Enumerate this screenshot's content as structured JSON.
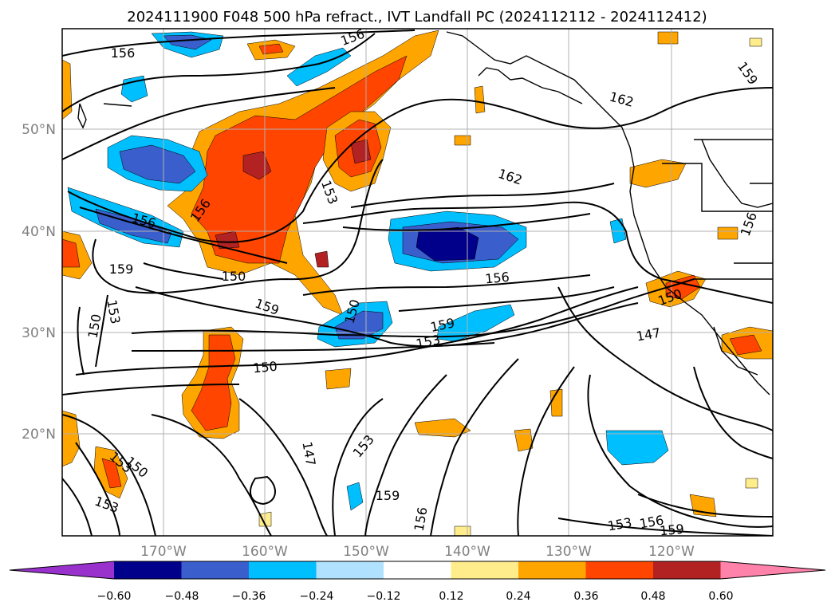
{
  "title": "2024111900 F048 500 hPa refract., IVT Landfall PC (2024112112 - 2024112412)",
  "lat_labels": [
    "50°N",
    "40°N",
    "30°N",
    "20°N"
  ],
  "lon_labels": [
    "170°W",
    "160°W",
    "150°W",
    "140°W",
    "130°W",
    "120°W"
  ],
  "contour_labels": [
    "156",
    "156",
    "159",
    "162",
    "162",
    "156",
    "153",
    "156",
    "156",
    "159",
    "150",
    "153",
    "150",
    "159",
    "159",
    "153",
    "156",
    "150",
    "150",
    "147",
    "150",
    "153",
    "150",
    "147",
    "153",
    "153",
    "156",
    "159",
    "156",
    "159",
    "153"
  ],
  "colorbar": {
    "ticks": [
      "−0.60",
      "−0.48",
      "−0.36",
      "−0.24",
      "−0.12",
      "0.12",
      "0.24",
      "0.36",
      "0.48",
      "0.60"
    ],
    "colors": [
      "#9932cc",
      "#00008b",
      "#3a5fcd",
      "#00bfff",
      "#b0e2ff",
      "#ffffff",
      "#ffec8b",
      "#ffa500",
      "#ff4500",
      "#b22222",
      "#ff82ab"
    ]
  }
}
